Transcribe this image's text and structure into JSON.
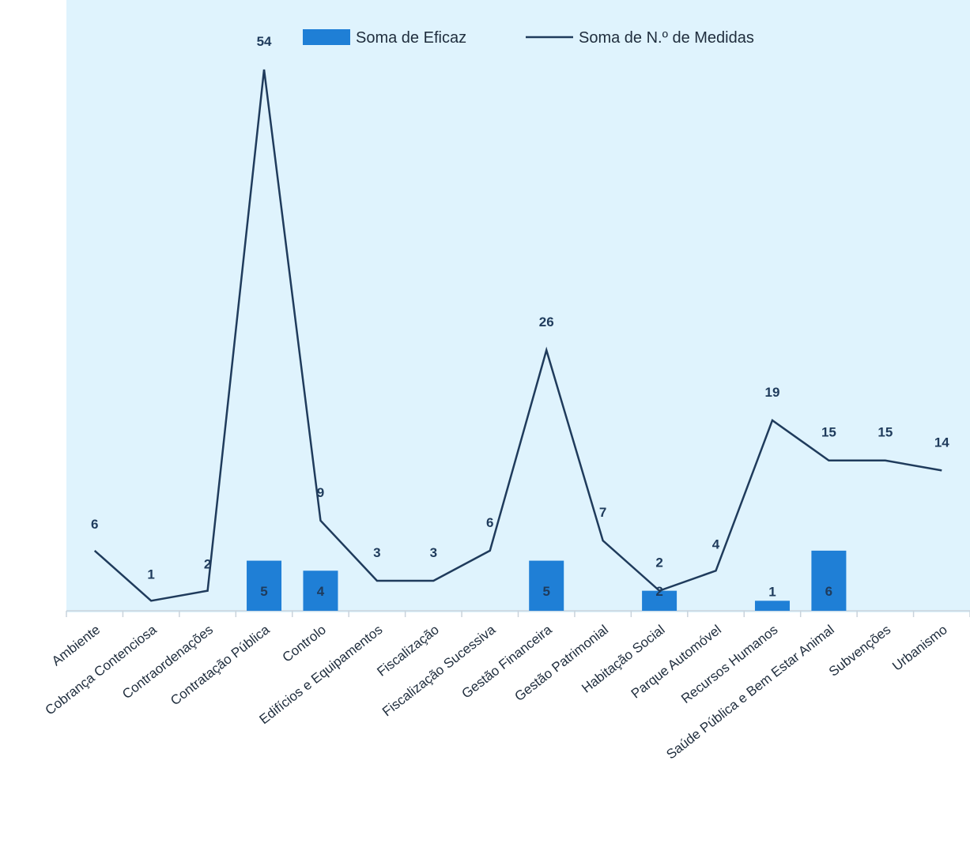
{
  "chart_data": {
    "type": "bar",
    "categories": [
      "Ambiente",
      "Cobrança Contenciosa",
      "Contraordenações",
      "Contratação Pública",
      "Controlo",
      "Edifícios e Equipamentos",
      "Fiscalização",
      "Fiscalização Sucessiva",
      "Gestão Financeira",
      "Gestão Patrimonial",
      "Habitação Social",
      "Parque Automóvel",
      "Recursos Humanos",
      "Saúde Pública e Bem Estar Animal",
      "Subvenções",
      "Urbanismo"
    ],
    "series": [
      {
        "name": "Soma de Eficaz",
        "type": "bar",
        "color": "#1f7fd6",
        "values": [
          0,
          0,
          0,
          5,
          4,
          0,
          0,
          0,
          5,
          0,
          2,
          0,
          1,
          6,
          0,
          0
        ],
        "labels": [
          "",
          "",
          "",
          "5",
          "4",
          "",
          "",
          "",
          "5",
          "",
          "2",
          "",
          "1",
          "6",
          "",
          ""
        ]
      },
      {
        "name": "Soma de N.º de Medidas",
        "type": "line",
        "color": "#1f3b5c",
        "values": [
          6,
          1,
          2,
          54,
          9,
          3,
          3,
          6,
          26,
          7,
          2,
          4,
          19,
          15,
          15,
          14
        ],
        "labels": [
          "6",
          "1",
          "2",
          "54",
          "9",
          "3",
          "3",
          "6",
          "26",
          "7",
          "2",
          "4",
          "19",
          "15",
          "15",
          "14"
        ]
      }
    ],
    "ylim": [
      0,
      54
    ],
    "grid": false,
    "legend_position": "top",
    "background_color": "#dff3fd",
    "title": "",
    "xlabel": "",
    "ylabel": ""
  }
}
